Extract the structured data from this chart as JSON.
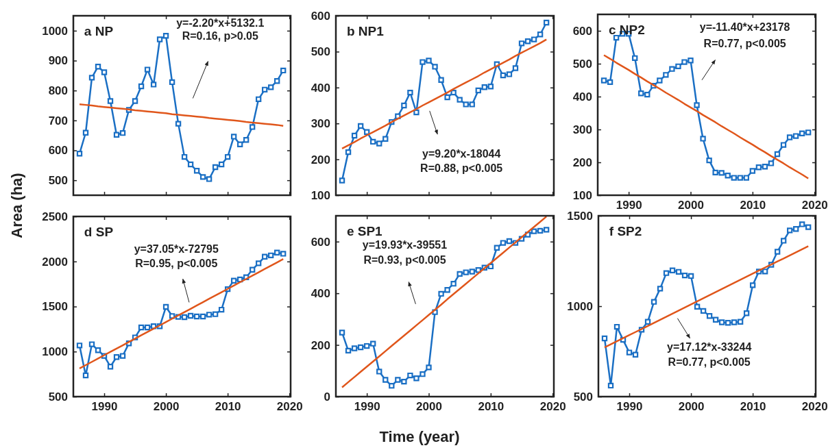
{
  "chart_data": [
    {
      "type": "line",
      "title": "a NP",
      "ylabel": "Area (ha)",
      "x": [
        1986,
        1987,
        1988,
        1989,
        1990,
        1991,
        1992,
        1993,
        1994,
        1995,
        1996,
        1997,
        1998,
        1999,
        2000,
        2001,
        2002,
        2003,
        2004,
        2005,
        2006,
        2007,
        2008,
        2009,
        2010,
        2011,
        2012,
        2013,
        2014,
        2015,
        2016,
        2017,
        2018,
        2019
      ],
      "xlim": [
        1985,
        2020.2
      ],
      "xticks": [
        1990,
        2000,
        2010,
        2020
      ],
      "ylim": [
        450,
        1050
      ],
      "yticks": [
        500,
        600,
        700,
        800,
        900,
        1000
      ],
      "tick_labels": "y",
      "grid": false,
      "series": [
        {
          "color": "#1a6fc4",
          "marker": "square",
          "values": [
            589,
            659,
            843,
            880,
            861,
            765,
            652,
            658,
            735,
            765,
            814,
            870,
            820,
            971,
            983,
            828,
            689,
            578,
            553,
            532,
            511,
            504,
            544,
            553,
            578,
            646,
            620,
            635,
            678,
            771,
            803,
            811,
            832,
            867
          ]
        },
        {
          "type": "line",
          "color": "#e0561b",
          "marker": "none",
          "values": [
            754,
            752,
            750,
            747,
            745,
            743,
            741,
            739,
            737,
            734,
            732,
            730,
            728,
            726,
            724,
            721,
            719,
            717,
            715,
            713,
            711,
            708,
            706,
            704,
            702,
            700,
            698,
            695,
            693,
            691,
            689,
            687,
            685,
            682
          ]
        }
      ],
      "annotations": [
        "y=-2.20*x+5132.1",
        "R=0.16, p>0.05"
      ]
    },
    {
      "type": "line",
      "title": "b  NP1",
      "x": [
        1986,
        1987,
        1988,
        1989,
        1990,
        1991,
        1992,
        1993,
        1994,
        1995,
        1996,
        1997,
        1998,
        1999,
        2000,
        2001,
        2002,
        2003,
        2004,
        2005,
        2006,
        2007,
        2008,
        2009,
        2010,
        2011,
        2012,
        2013,
        2014,
        2015,
        2016,
        2017,
        2018,
        2019
      ],
      "xlim": [
        1985,
        2020.2
      ],
      "xticks": [
        1990,
        2000,
        2010,
        2020
      ],
      "ylim": [
        100,
        600
      ],
      "yticks": [
        100,
        200,
        300,
        400,
        500,
        600
      ],
      "tick_labels": "y",
      "grid": false,
      "series": [
        {
          "color": "#1a6fc4",
          "marker": "square",
          "values": [
            141,
            220,
            266,
            293,
            276,
            249,
            244,
            257,
            304,
            320,
            350,
            386,
            331,
            471,
            475,
            458,
            421,
            373,
            386,
            366,
            353,
            353,
            392,
            401,
            403,
            465,
            434,
            437,
            454,
            523,
            529,
            534,
            548,
            581
          ]
        },
        {
          "type": "line",
          "color": "#e0561b",
          "marker": "none",
          "values": [
            230,
            239,
            248,
            258,
            267,
            276,
            285,
            294,
            304,
            313,
            322,
            331,
            340,
            350,
            359,
            368,
            377,
            386,
            396,
            405,
            414,
            423,
            432,
            442,
            451,
            460,
            469,
            478,
            488,
            497,
            506,
            515,
            524,
            534
          ]
        }
      ],
      "annotations": [
        "y=9.20*x-18044",
        "R=0.88, p<0.005"
      ]
    },
    {
      "type": "line",
      "title": "c  NP2",
      "x": [
        1986,
        1987,
        1988,
        1989,
        1990,
        1991,
        1992,
        1993,
        1994,
        1995,
        1996,
        1997,
        1998,
        1999,
        2000,
        2001,
        2002,
        2003,
        2004,
        2005,
        2006,
        2007,
        2008,
        2009,
        2010,
        2011,
        2012,
        2013,
        2014,
        2015,
        2016,
        2017,
        2018,
        2019
      ],
      "xlim": [
        1985,
        2020.2
      ],
      "xticks": [
        1990,
        2000,
        2010,
        2020
      ],
      "ylim": [
        100,
        650
      ],
      "yticks": [
        100,
        200,
        300,
        400,
        500,
        600
      ],
      "grid": false,
      "series": [
        {
          "color": "#1a6fc4",
          "marker": "square",
          "values": [
            449,
            444,
            579,
            591,
            591,
            517,
            410,
            406,
            433,
            449,
            466,
            484,
            492,
            505,
            510,
            374,
            272,
            206,
            169,
            168,
            160,
            153,
            153,
            153,
            174,
            185,
            187,
            197,
            225,
            253,
            276,
            280,
            288,
            291
          ]
        },
        {
          "type": "line",
          "color": "#e0561b",
          "marker": "none",
          "values": [
            526,
            515,
            503,
            492,
            481,
            469,
            458,
            446,
            435,
            424,
            412,
            401,
            390,
            378,
            367,
            356,
            344,
            333,
            322,
            310,
            299,
            288,
            276,
            265,
            254,
            242,
            231,
            219,
            208,
            197,
            185,
            174,
            163,
            151
          ]
        }
      ],
      "annotations": [
        "y=-11.40*x+23178",
        "R=0.77, p<0.005"
      ]
    },
    {
      "type": "line",
      "title": "d  SP",
      "x": [
        1986,
        1987,
        1988,
        1989,
        1990,
        1991,
        1992,
        1993,
        1994,
        1995,
        1996,
        1997,
        1998,
        1999,
        2000,
        2001,
        2002,
        2003,
        2004,
        2005,
        2006,
        2007,
        2008,
        2009,
        2010,
        2011,
        2012,
        2013,
        2014,
        2015,
        2016,
        2017,
        2018,
        2019
      ],
      "xlim": [
        1985,
        2020.2
      ],
      "xticks": [
        1990,
        2000,
        2010,
        2020
      ],
      "ylim": [
        500,
        2500
      ],
      "yticks": [
        500,
        1000,
        1500,
        2000,
        2500
      ],
      "grid": false,
      "series": [
        {
          "color": "#1a6fc4",
          "marker": "square",
          "values": [
            1068,
            736,
            1081,
            1015,
            952,
            833,
            939,
            952,
            1091,
            1157,
            1268,
            1268,
            1281,
            1281,
            1496,
            1395,
            1385,
            1382,
            1397,
            1390,
            1390,
            1410,
            1415,
            1465,
            1693,
            1787,
            1800,
            1825,
            1909,
            1980,
            2053,
            2068,
            2099,
            2086
          ]
        },
        {
          "type": "line",
          "color": "#e0561b",
          "marker": "none",
          "values": [
            813,
            850,
            886,
            923,
            960,
            997,
            1034,
            1070,
            1107,
            1144,
            1181,
            1218,
            1254,
            1291,
            1328,
            1365,
            1402,
            1438,
            1475,
            1512,
            1549,
            1586,
            1622,
            1659,
            1696,
            1733,
            1770,
            1806,
            1843,
            1880,
            1917,
            1954,
            1990,
            2027
          ]
        }
      ],
      "annotations": [
        "y=37.05*x-72795",
        "R=0.95, p<0.005"
      ]
    },
    {
      "type": "line",
      "title": "e  SP1",
      "xlabel": "Time (year)",
      "x": [
        1986,
        1987,
        1988,
        1989,
        1990,
        1991,
        1992,
        1993,
        1994,
        1995,
        1996,
        1997,
        1998,
        1999,
        2000,
        2001,
        2002,
        2003,
        2004,
        2005,
        2006,
        2007,
        2008,
        2009,
        2010,
        2011,
        2012,
        2013,
        2014,
        2015,
        2016,
        2017,
        2018,
        2019
      ],
      "xlim": [
        1985,
        2020.2
      ],
      "xticks": [
        1990,
        2000,
        2010,
        2020
      ],
      "ylim": [
        0,
        700
      ],
      "yticks": [
        0,
        200,
        400,
        600
      ],
      "grid": false,
      "series": [
        {
          "color": "#1a6fc4",
          "marker": "square",
          "values": [
            248,
            178,
            187,
            191,
            196,
            205,
            97,
            65,
            42,
            65,
            58,
            82,
            71,
            87,
            113,
            327,
            398,
            413,
            437,
            475,
            481,
            484,
            490,
            499,
            504,
            576,
            595,
            602,
            595,
            611,
            627,
            640,
            642,
            646
          ]
        },
        {
          "type": "line",
          "color": "#e0561b",
          "marker": "none",
          "values": [
            36,
            56,
            76,
            96,
            116,
            136,
            156,
            176,
            196,
            216,
            236,
            256,
            276,
            296,
            316,
            336,
            356,
            377,
            397,
            417,
            437,
            457,
            477,
            497,
            517,
            537,
            557,
            577,
            597,
            617,
            637,
            657,
            677,
            697
          ]
        }
      ],
      "annotations": [
        "y=19.93*x-39551",
        "R=0.93, p<0.005"
      ]
    },
    {
      "type": "line",
      "title": "f  SP2",
      "x": [
        1986,
        1987,
        1988,
        1989,
        1990,
        1991,
        1992,
        1993,
        1994,
        1995,
        1996,
        1997,
        1998,
        1999,
        2000,
        2001,
        2002,
        2003,
        2004,
        2005,
        2006,
        2007,
        2008,
        2009,
        2010,
        2011,
        2012,
        2013,
        2014,
        2015,
        2016,
        2017,
        2018,
        2019
      ],
      "xlim": [
        1985,
        2020.2
      ],
      "xticks": [
        1990,
        2000,
        2010,
        2020
      ],
      "ylim": [
        500,
        1500
      ],
      "yticks": [
        500,
        1000,
        1500
      ],
      "grid": false,
      "series": [
        {
          "color": "#1a6fc4",
          "marker": "square",
          "values": [
            822,
            561,
            886,
            814,
            744,
            732,
            870,
            914,
            1024,
            1097,
            1183,
            1198,
            1190,
            1170,
            1167,
            997,
            974,
            946,
            925,
            911,
            908,
            911,
            914,
            961,
            1116,
            1192,
            1192,
            1229,
            1301,
            1362,
            1419,
            1427,
            1453,
            1437
          ]
        },
        {
          "type": "line",
          "color": "#e0561b",
          "marker": "none",
          "values": [
            772,
            789,
            806,
            823,
            840,
            857,
            874,
            891,
            908,
            925,
            942,
            959,
            976,
            993,
            1010,
            1027,
            1044,
            1061,
            1078,
            1095,
            1112,
            1129,
            1146,
            1163,
            1180,
            1197,
            1214,
            1231,
            1248,
            1264,
            1281,
            1298,
            1315,
            1332
          ]
        }
      ],
      "annotations": [
        "y=17.12*x-33244",
        "R=0.77, p<0.005"
      ]
    }
  ]
}
